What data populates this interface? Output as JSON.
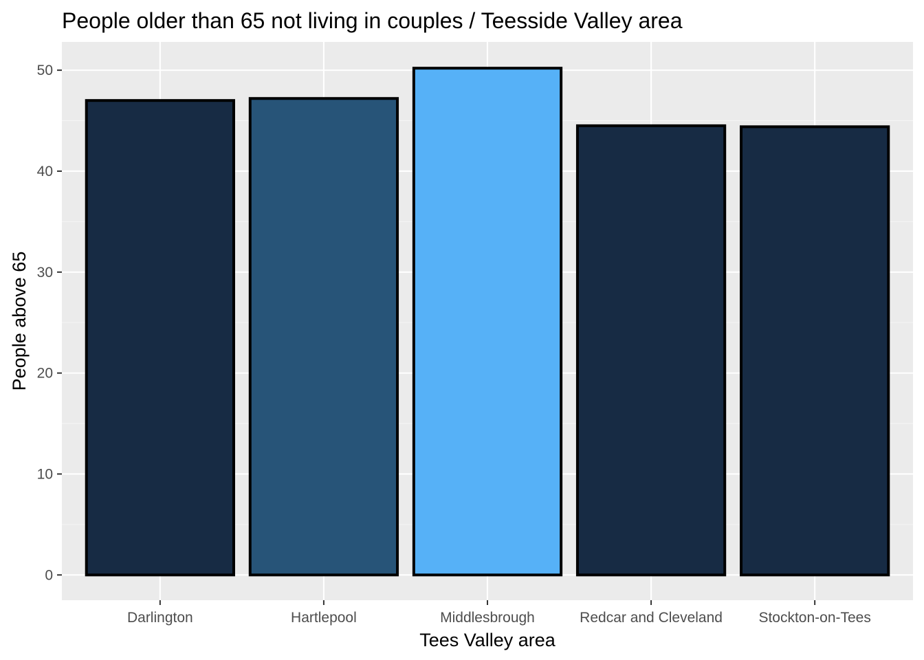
{
  "chart_data": {
    "type": "bar",
    "title": "People older than 65 not living in couples / Teesside Valley area",
    "xlabel": "Tees Valley area",
    "ylabel": "People above 65",
    "categories": [
      "Darlington",
      "Hartlepool",
      "Middlesbrough",
      "Redcar and Cleveland",
      "Stockton-on-Tees"
    ],
    "values": [
      47.0,
      47.2,
      50.2,
      44.5,
      44.4
    ],
    "fill_values_scale_colors": [
      "#172b44",
      "#275478",
      "#56b1f7",
      "#172b44",
      "#172b44"
    ],
    "ylim": [
      -2.5,
      52.8
    ],
    "y_ticks": [
      0,
      10,
      20,
      30,
      40,
      50
    ],
    "grid": true,
    "legend": "none",
    "colors": {
      "panel_background": "#ebebeb",
      "grid_major": "#ffffff",
      "grid_minor": "#f5f5f5",
      "bar_outline": "#000000"
    }
  }
}
